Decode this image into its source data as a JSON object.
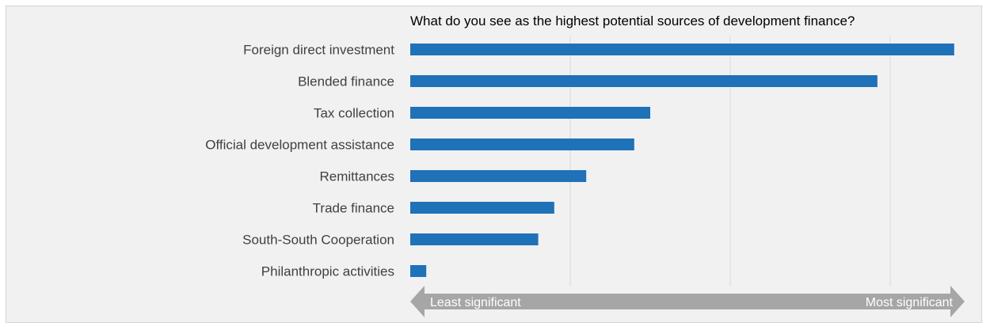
{
  "chart_data": {
    "type": "bar",
    "orientation": "horizontal",
    "title": "What do you see as the highest potential sources of development finance?",
    "categories": [
      "Foreign direct investment",
      "Blended finance",
      "Tax collection",
      "Official development assistance",
      "Remittances",
      "Trade finance",
      "South-South Cooperation",
      "Philanthropic activities"
    ],
    "values": [
      3.4,
      2.92,
      1.5,
      1.4,
      1.1,
      0.9,
      0.8,
      0.1
    ],
    "xlim": [
      0,
      3.5
    ],
    "gridlines_at": [
      1,
      2,
      3
    ],
    "grid": true,
    "tick_labels_shown": false,
    "axis_arrow": {
      "left_label": "Least significant",
      "right_label": "Most significant"
    },
    "colors": {
      "bar": "#1f71b8",
      "background": "#f1f1f1",
      "gridline": "#d9d9d9",
      "arrow": "#a6a6a6",
      "arrow_text": "#ffffff",
      "label_text": "#404040"
    }
  }
}
